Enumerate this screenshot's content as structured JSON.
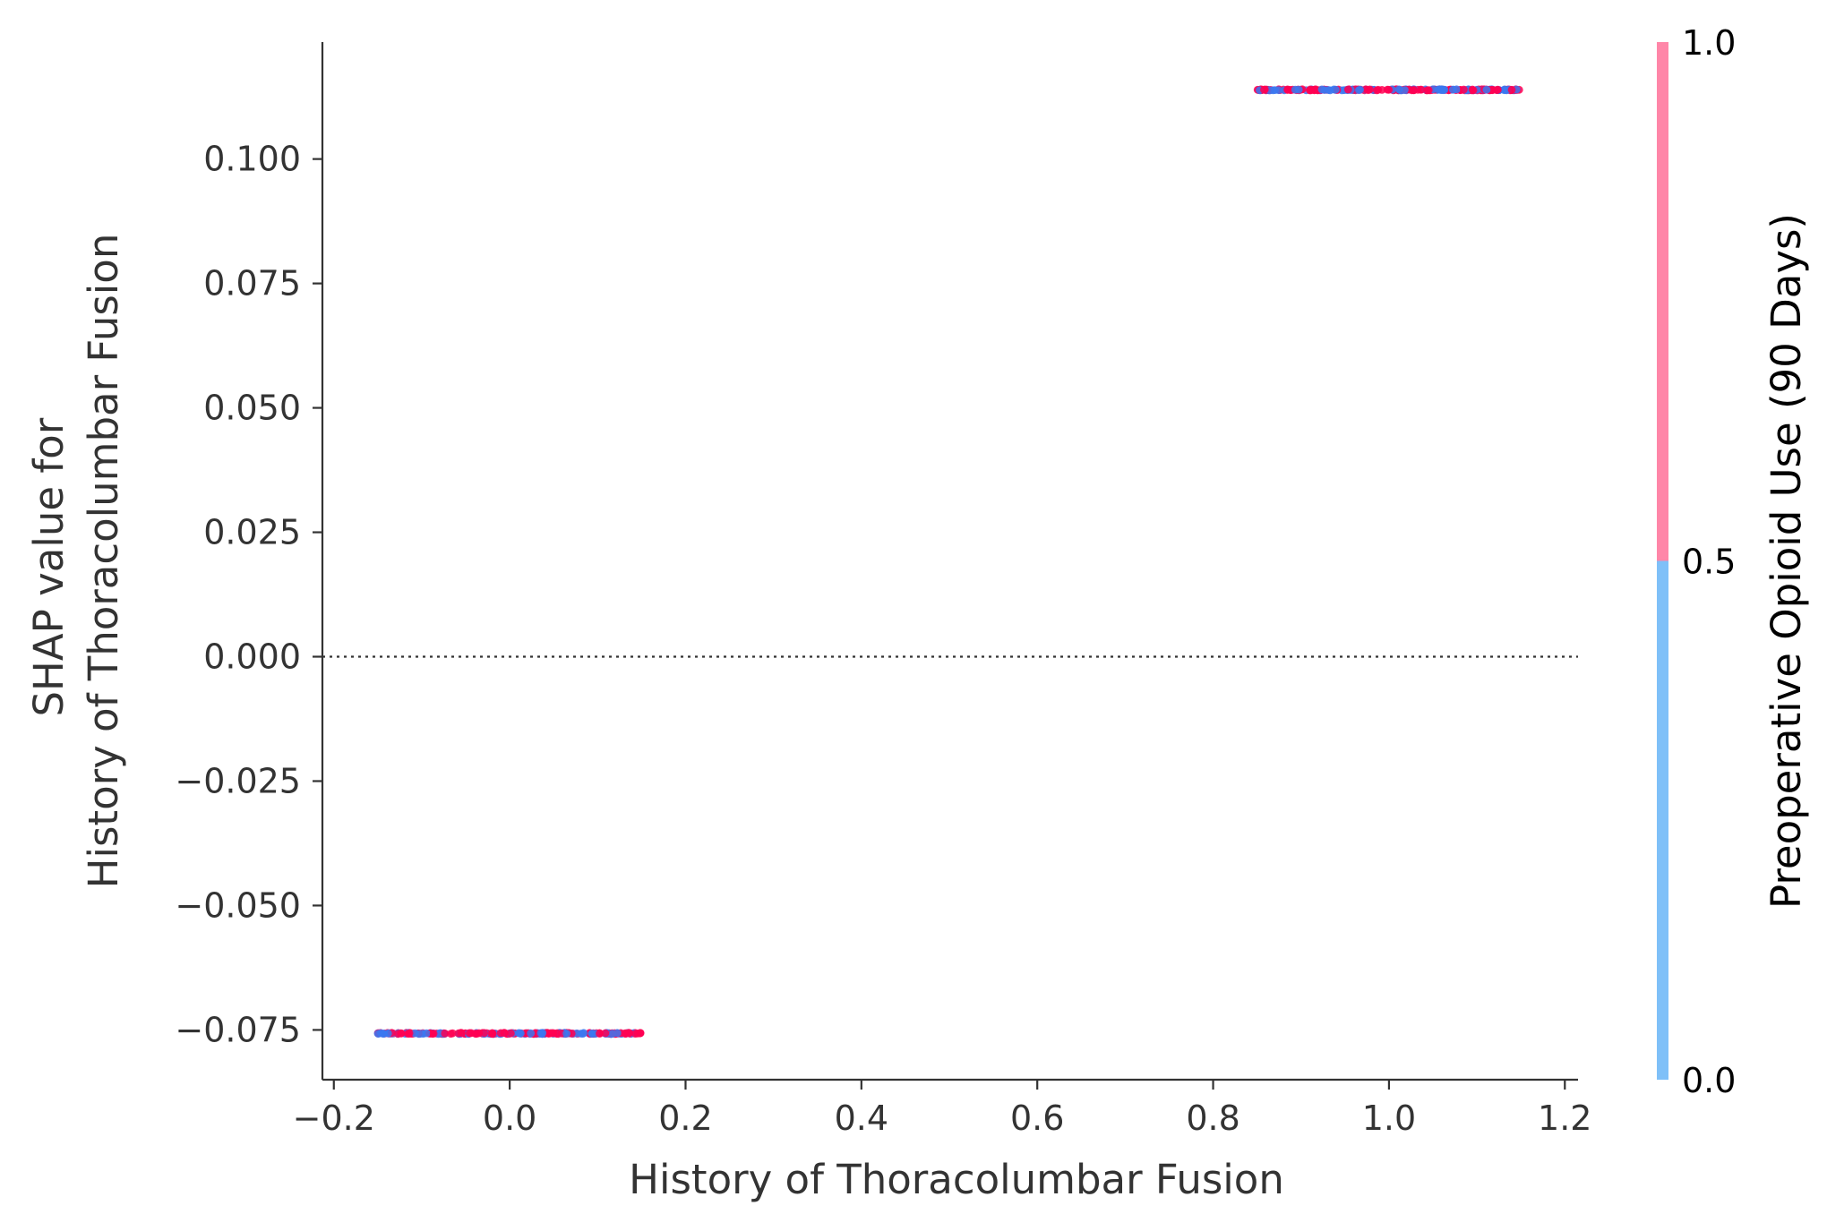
{
  "chart_data": {
    "type": "scatter",
    "xlabel": "History of Thoracolumbar Fusion",
    "ylabel_lines": [
      "SHAP value for",
      "History of Thoracolumbar Fusion"
    ],
    "xlim": [
      -0.213,
      1.215
    ],
    "ylim": [
      -0.085,
      0.1235
    ],
    "x_ticks": [
      -0.2,
      0.0,
      0.2,
      0.4,
      0.6,
      0.8,
      1.0,
      1.2
    ],
    "x_tick_labels": [
      "−0.2",
      "0.0",
      "0.2",
      "0.4",
      "0.6",
      "0.8",
      "1.0",
      "1.2"
    ],
    "y_ticks": [
      -0.075,
      -0.05,
      -0.025,
      0.0,
      0.025,
      0.05,
      0.075,
      0.1
    ],
    "y_tick_labels": [
      "−0.075",
      "−0.050",
      "−0.025",
      "0.000",
      "0.025",
      "0.050",
      "0.075",
      "0.100"
    ],
    "zero_line": true,
    "grid": false,
    "clusters": [
      {
        "x_center": 0.0,
        "x_spread": [
          -0.15,
          0.15
        ],
        "y": -0.0757
      },
      {
        "x_center": 1.0,
        "x_spread": [
          0.85,
          1.15
        ],
        "y": 0.1139
      }
    ],
    "colorbar": {
      "label": "Preoperative Opioid Use (90 Days)",
      "ticks": [
        0.0,
        0.5,
        1.0
      ],
      "tick_labels": [
        "0.0",
        "0.5",
        "1.0"
      ],
      "low_color": "#7fc0f8",
      "high_color": "#ff86a8"
    },
    "point_colors": {
      "high": "#ff0052",
      "low": "#3b78f0"
    }
  }
}
